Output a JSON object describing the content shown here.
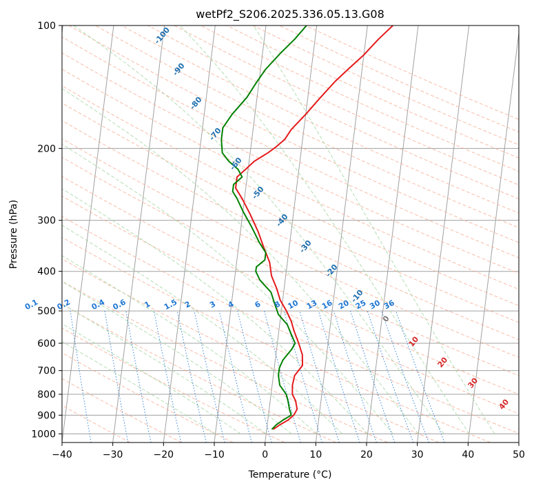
{
  "chart_data": {
    "type": "line",
    "title": "wetPf2_S206.2025.336.05.13.G08",
    "xlabel": "Temperature (°C)",
    "ylabel": "Pressure (hPa)",
    "xlim": [
      -40,
      50
    ],
    "ylim": [
      1050,
      100
    ],
    "x_ticks": [
      -40,
      -30,
      -20,
      -10,
      0,
      10,
      20,
      30,
      40,
      50
    ],
    "x_tick_labels": [
      "−40",
      "−30",
      "−20",
      "−10",
      "0",
      "10",
      "20",
      "30",
      "40",
      "50"
    ],
    "y_ticks": [
      100,
      200,
      300,
      400,
      500,
      600,
      700,
      800,
      900,
      1000
    ],
    "y_tick_labels": [
      "100",
      "200",
      "300",
      "400",
      "500",
      "600",
      "700",
      "800",
      "900",
      "1000"
    ],
    "colors": {
      "temperature": "#e31a1c",
      "dewpoint": "#008000",
      "isotherm": "#a0a0a0",
      "dry_adiabat": "#f6a58a",
      "moist_adiabat": "#a6d7a6",
      "mixing_ratio": "#1f77d4",
      "moist_label": "#2070b0",
      "lcl_label": "#d62728"
    },
    "series": [
      {
        "name": "Temperature",
        "points": [
          [
            1.3,
            975
          ],
          [
            2.5,
            950
          ],
          [
            4.0,
            925
          ],
          [
            5.0,
            900
          ],
          [
            5.5,
            870
          ],
          [
            5.0,
            830
          ],
          [
            4.2,
            800
          ],
          [
            4.0,
            760
          ],
          [
            4.2,
            720
          ],
          [
            5.5,
            680
          ],
          [
            5.2,
            640
          ],
          [
            4.2,
            600
          ],
          [
            3.0,
            560
          ],
          [
            2.2,
            530
          ],
          [
            1.0,
            500
          ],
          [
            -0.5,
            470
          ],
          [
            -1.5,
            440
          ],
          [
            -2.8,
            410
          ],
          [
            -3.5,
            380
          ],
          [
            -5.0,
            350
          ],
          [
            -6.5,
            320
          ],
          [
            -8.5,
            290
          ],
          [
            -10.5,
            265
          ],
          [
            -12.0,
            250
          ],
          [
            -12.0,
            235
          ],
          [
            -10.5,
            225
          ],
          [
            -9.0,
            215
          ],
          [
            -6.5,
            205
          ],
          [
            -5.0,
            198
          ],
          [
            -3.5,
            190
          ],
          [
            -2.5,
            180
          ],
          [
            0.0,
            165
          ],
          [
            2.5,
            150
          ],
          [
            5.0,
            137
          ],
          [
            7.5,
            127
          ],
          [
            10.0,
            118
          ],
          [
            12.5,
            108
          ],
          [
            15.0,
            100
          ]
        ]
      },
      {
        "name": "Dewpoint",
        "points": [
          [
            1.0,
            975
          ],
          [
            1.8,
            950
          ],
          [
            3.0,
            925
          ],
          [
            4.5,
            900
          ],
          [
            4.0,
            870
          ],
          [
            3.5,
            830
          ],
          [
            3.0,
            800
          ],
          [
            1.5,
            760
          ],
          [
            1.0,
            720
          ],
          [
            1.0,
            690
          ],
          [
            1.5,
            660
          ],
          [
            3.0,
            620
          ],
          [
            3.5,
            600
          ],
          [
            2.5,
            570
          ],
          [
            1.5,
            540
          ],
          [
            -0.5,
            510
          ],
          [
            -1.5,
            480
          ],
          [
            -2.5,
            450
          ],
          [
            -5.0,
            420
          ],
          [
            -6.0,
            400
          ],
          [
            -6.0,
            390
          ],
          [
            -4.5,
            375
          ],
          [
            -4.5,
            360
          ],
          [
            -6.0,
            340
          ],
          [
            -8.0,
            310
          ],
          [
            -10.0,
            285
          ],
          [
            -11.5,
            265
          ],
          [
            -12.5,
            255
          ],
          [
            -12.5,
            245
          ],
          [
            -11.0,
            235
          ],
          [
            -12.0,
            225
          ],
          [
            -14.0,
            215
          ],
          [
            -15.5,
            205
          ],
          [
            -16.0,
            190
          ],
          [
            -16.0,
            178
          ],
          [
            -14.5,
            165
          ],
          [
            -12.0,
            150
          ],
          [
            -10.5,
            138
          ],
          [
            -9.0,
            128
          ],
          [
            -6.5,
            117
          ],
          [
            -4.0,
            108
          ],
          [
            -2.0,
            100
          ]
        ]
      }
    ],
    "moist_adiabat_labels": [
      "-100",
      "-90",
      "-80",
      "-70",
      "-60",
      "-50",
      "-40",
      "-30",
      "-20",
      "-10",
      "0"
    ],
    "mixing_ratio_labels": [
      "0.1",
      "0.2",
      "0.4",
      "0.6",
      "1",
      "1.5",
      "2",
      "3",
      "4",
      "6",
      "8",
      "10",
      "13",
      "16",
      "20",
      "25",
      "30",
      "36"
    ],
    "lcl_labels": [
      "10",
      "20",
      "30",
      "40"
    ]
  }
}
